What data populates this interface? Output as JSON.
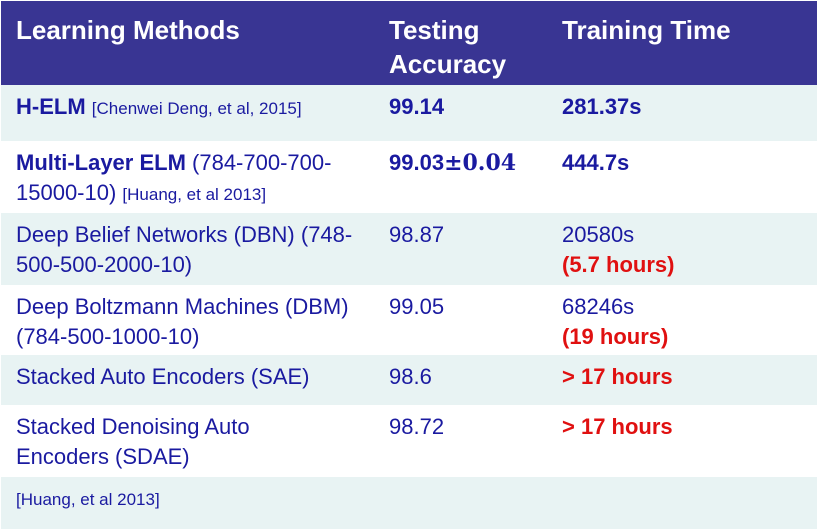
{
  "header": {
    "col1": "Learning Methods",
    "col2_line1": "Testing",
    "col2_line2": "Accuracy",
    "col3": "Training Time"
  },
  "rows": [
    {
      "method_name": "H-ELM",
      "method_rest": "",
      "method_ref": "[Chenwei Deng, et al, 2015]",
      "accuracy": "99.14",
      "accuracy_pm": "",
      "time": "281.37s",
      "time_note": ""
    },
    {
      "method_name": "Multi-Layer ELM",
      "method_rest": " (784-700-700-15000-10) ",
      "method_ref": "[Huang, et al 2013]",
      "accuracy": "99.03",
      "accuracy_pm": "±0.04",
      "time": "444.7s",
      "time_note": ""
    },
    {
      "method_name": "",
      "method_rest": "Deep Belief Networks (DBN) (748-500-500-2000-10)",
      "method_ref": "",
      "accuracy": "98.87",
      "accuracy_pm": "",
      "time": "20580s",
      "time_note": "(5.7 hours)"
    },
    {
      "method_name": "",
      "method_rest": "Deep Boltzmann Machines (DBM) (784-500-1000-10)",
      "method_ref": "",
      "accuracy": "99.05",
      "accuracy_pm": "",
      "time": "68246s",
      "time_note": "(19 hours)"
    },
    {
      "method_name": "",
      "method_rest": "Stacked Auto Encoders (SAE)",
      "method_ref": "",
      "accuracy": "98.6",
      "accuracy_pm": "",
      "time": "",
      "time_note": "> 17 hours"
    },
    {
      "method_name": "",
      "method_rest": "Stacked Denoising Auto Encoders (SDAE)",
      "method_ref": "",
      "accuracy": "98.72",
      "accuracy_pm": "",
      "time": "",
      "time_note": "> 17 hours"
    }
  ],
  "footnote": "[Huang, et al 2013]",
  "colors": {
    "header_bg": "#393593",
    "text": "#1a1aa0",
    "highlight": "#e01010",
    "alt_row": "#e8f3f3"
  }
}
